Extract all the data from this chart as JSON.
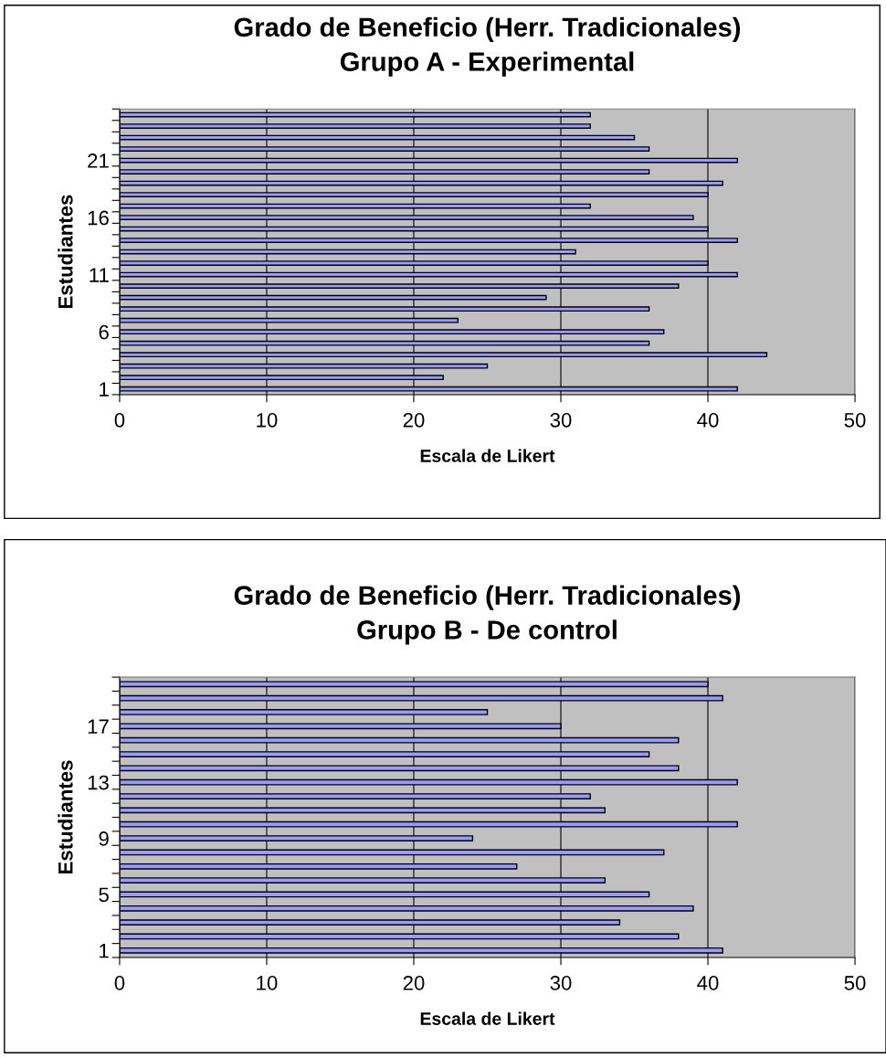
{
  "chart_data": [
    {
      "type": "bar",
      "orientation": "horizontal",
      "title": "Grado de Beneficio (Herr. Tradicionales)\nGrupo A - Experimental",
      "xlabel": "Escala de Likert",
      "ylabel": "Estudiantes",
      "categories": [
        null,
        null,
        null,
        null,
        "21",
        null,
        null,
        null,
        null,
        "16",
        null,
        null,
        null,
        null,
        "11",
        null,
        null,
        null,
        null,
        "6",
        null,
        null,
        null,
        null,
        "1"
      ],
      "values": [
        32,
        32,
        35,
        36,
        42,
        36,
        41,
        40,
        32,
        39,
        40,
        42,
        31,
        40,
        42,
        38,
        29,
        36,
        23,
        37,
        36,
        44,
        25,
        22,
        42
      ],
      "color": "#9999ff",
      "xlim": [
        0,
        50
      ],
      "xticks": [
        0,
        10,
        20,
        30,
        40,
        50
      ],
      "grid": "x"
    },
    {
      "type": "bar",
      "orientation": "horizontal",
      "title": "Grado de Beneficio (Herr. Tradicionales)\nGrupo B - De control",
      "xlabel": "Escala de Likert",
      "ylabel": "Estudiantes",
      "categories": [
        null,
        null,
        null,
        "17",
        null,
        null,
        null,
        "13",
        null,
        null,
        null,
        "9",
        null,
        null,
        null,
        "5",
        null,
        null,
        null,
        "1"
      ],
      "values": [
        40,
        41,
        25,
        30,
        38,
        36,
        38,
        42,
        32,
        33,
        42,
        24,
        37,
        27,
        33,
        36,
        39,
        34,
        38,
        41
      ],
      "color": "#9999ff",
      "xlim": [
        0,
        50
      ],
      "xticks": [
        0,
        10,
        20,
        30,
        40,
        50
      ],
      "grid": "x"
    }
  ]
}
